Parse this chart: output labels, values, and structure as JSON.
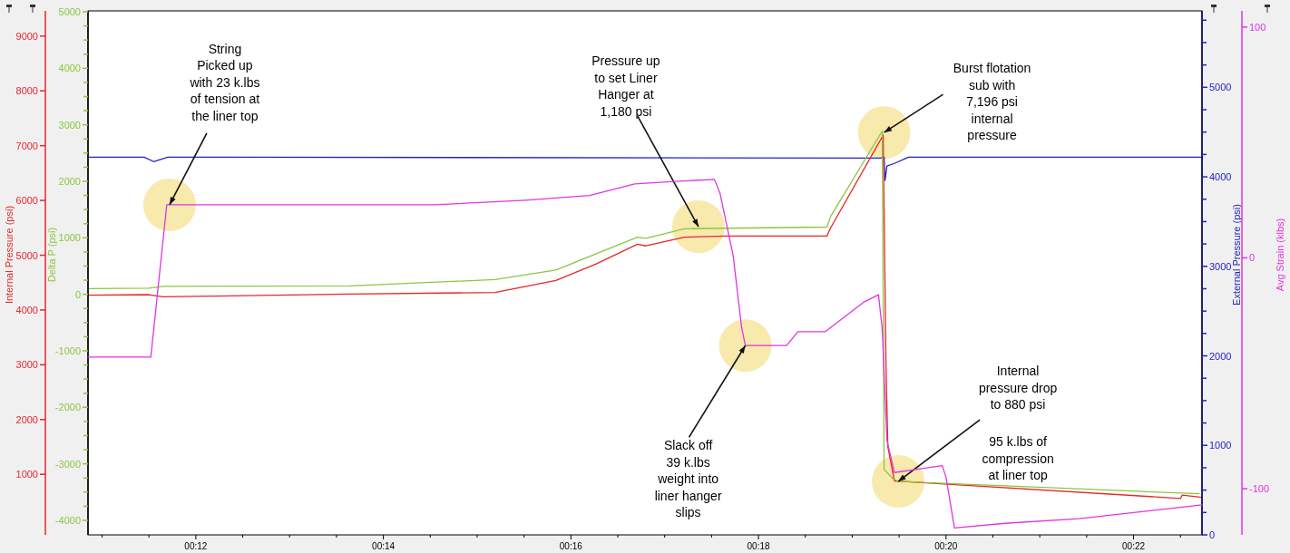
{
  "chart_data": [
    {
      "type": "line",
      "xlim": [
        10.85,
        22.73
      ],
      "xticks": [
        {
          "value": 11,
          "label": null
        },
        {
          "value": 11.5,
          "label": null
        },
        {
          "value": 12,
          "label": "00:12"
        },
        {
          "value": 12.5,
          "label": null
        },
        {
          "value": 13,
          "label": null
        },
        {
          "value": 13.5,
          "label": null
        },
        {
          "value": 14,
          "label": "00:14"
        },
        {
          "value": 14.5,
          "label": null
        },
        {
          "value": 15,
          "label": null
        },
        {
          "value": 15.5,
          "label": null
        },
        {
          "value": 16,
          "label": "00:16"
        },
        {
          "value": 16.5,
          "label": null
        },
        {
          "value": 17,
          "label": null
        },
        {
          "value": 17.5,
          "label": null
        },
        {
          "value": 18,
          "label": "00:18"
        },
        {
          "value": 18.5,
          "label": null
        },
        {
          "value": 19,
          "label": null
        },
        {
          "value": 19.5,
          "label": null
        },
        {
          "value": 20,
          "label": "00:20"
        },
        {
          "value": 20.5,
          "label": null
        },
        {
          "value": 21,
          "label": null
        },
        {
          "value": 21.5,
          "label": null
        },
        {
          "value": 22,
          "label": "00:22"
        },
        {
          "value": 22.5,
          "label": null
        }
      ],
      "ylabel": "Internal Pressure (psi)",
      "ylim": [
        -105,
        9460
      ],
      "yticks": [
        1000,
        2000,
        3000,
        4000,
        5000,
        6000,
        7000,
        8000,
        9000
      ],
      "y2label": "Delta P (psi)",
      "y2lim": [
        -4257,
        5016
      ],
      "y2ticks": [
        -4000,
        -3000,
        -2000,
        -1000,
        0,
        1000,
        2000,
        3000,
        4000,
        5000,
        {
          "value": -3750,
          "label": null
        },
        {
          "value": -3500,
          "label": null
        },
        {
          "value": -3250,
          "label": null
        },
        {
          "value": -2750,
          "label": null
        },
        {
          "value": -2500,
          "label": null
        },
        {
          "value": -2250,
          "label": null
        },
        {
          "value": -1750,
          "label": null
        },
        {
          "value": -1500,
          "label": null
        },
        {
          "value": -1250,
          "label": null
        },
        {
          "value": -750,
          "label": null
        },
        {
          "value": -500,
          "label": null
        },
        {
          "value": -250,
          "label": null
        },
        {
          "value": 250,
          "label": null
        },
        {
          "value": 500,
          "label": null
        },
        {
          "value": 750,
          "label": null
        },
        {
          "value": 1250,
          "label": null
        },
        {
          "value": 1500,
          "label": null
        },
        {
          "value": 1750,
          "label": null
        },
        {
          "value": 2250,
          "label": null
        },
        {
          "value": 2500,
          "label": null
        },
        {
          "value": 2750,
          "label": null
        },
        {
          "value": 3250,
          "label": null
        },
        {
          "value": 3500,
          "label": null
        },
        {
          "value": 3750,
          "label": null
        },
        {
          "value": 4250,
          "label": null
        },
        {
          "value": 4500,
          "label": null
        },
        {
          "value": 4750,
          "label": null
        }
      ],
      "y3label": "External Pressure (psi)",
      "y3lim": [
        0,
        5854
      ],
      "y3ticks": [
        0,
        1000,
        2000,
        3000,
        4000,
        5000,
        {
          "value": 250,
          "label": null
        },
        {
          "value": 500,
          "label": null
        },
        {
          "value": 750,
          "label": null
        },
        {
          "value": 1250,
          "label": null
        },
        {
          "value": 1500,
          "label": null
        },
        {
          "value": 1750,
          "label": null
        },
        {
          "value": 2250,
          "label": null
        },
        {
          "value": 2500,
          "label": null
        },
        {
          "value": 2750,
          "label": null
        },
        {
          "value": 3250,
          "label": null
        },
        {
          "value": 3500,
          "label": null
        },
        {
          "value": 3750,
          "label": null
        },
        {
          "value": 4250,
          "label": null
        },
        {
          "value": 4500,
          "label": null
        },
        {
          "value": 4750,
          "label": null
        },
        {
          "value": 5250,
          "label": null
        },
        {
          "value": 5500,
          "label": null
        },
        {
          "value": 5750,
          "label": null
        }
      ],
      "series": [
        {
          "color": "#2222c8",
          "axis": "y3",
          "x": [
            10.85,
            11.45,
            11.55,
            11.7,
            19.3,
            19.34,
            19.35,
            19.37,
            19.45,
            19.6,
            22.73
          ],
          "values": [
            4220,
            4220,
            4170,
            4220,
            4210,
            4220,
            3960,
            4120,
            4150,
            4220,
            4220
          ]
        },
        {
          "color": "#e8262a",
          "x": [
            10.85,
            11.5,
            11.65,
            13.64,
            15.19,
            15.84,
            16.27,
            16.71,
            16.8,
            17.21,
            17.65,
            18.73,
            18.77,
            19.33,
            19.36,
            19.38,
            19.45,
            22.5,
            22.52,
            22.73
          ],
          "values": [
            4270,
            4280,
            4240,
            4290,
            4320,
            4540,
            4840,
            5200,
            5170,
            5330,
            5350,
            5350,
            5500,
            7190,
            3000,
            1500,
            880,
            560,
            620,
            580
          ]
        },
        {
          "color": "#8cc63e",
          "axis": "y2",
          "x": [
            10.85,
            11.5,
            11.65,
            13.64,
            15.19,
            15.84,
            16.27,
            16.71,
            16.8,
            16.92,
            17.21,
            17.65,
            18.73,
            18.77,
            19.32,
            19.34,
            19.44,
            19.49,
            22.7
          ],
          "values": [
            100,
            110,
            140,
            150,
            260,
            430,
            720,
            1010,
            990,
            1040,
            1160,
            1170,
            1190,
            1380,
            2890,
            -3100,
            -3270,
            -3310,
            -3530
          ]
        }
      ],
      "annotations": [
        {
          "text": "Pressure up\nto set Liner\nHanger at\n1,180 psi",
          "x": 17.36,
          "y": 5520
        },
        {
          "text": "Burst flotation\nsub with\n7,196 psi\ninternal\npressure",
          "x": 19.34,
          "y": 7240
        },
        {
          "text": "Internal\npressure drop\nto 880 psi",
          "x": 19.49,
          "y": 870
        },
        "95 k.lbs of\ncompression\nat liner top"
      ]
    },
    {
      "type": "line",
      "tick_labels": "y",
      "xlim": [
        10.85,
        22.73
      ],
      "ylabel": "Avg Strain (klbs)",
      "ylim": [
        -120,
        107
      ],
      "annotations": [
        {
          "text": "String\nPicked up\nwith 23 k.lbs\nof tension at\nthe liner top",
          "x": 11.72,
          "y": 23
        },
        {
          "text": "Slack off\n39 k.lbs\nweight into\nliner hanger\nslips",
          "x": 17.86,
          "y": -38
        }
      ],
      "yticks": [
        -100,
        0,
        100
      ],
      "series": [
        {
          "color": "#e035e0",
          "x": [
            10.85,
            11.52,
            11.69,
            14.55,
            15.52,
            16.2,
            16.68,
            17.07,
            17.53,
            17.59,
            17.73,
            17.82,
            17.86,
            18.3,
            18.42,
            18.71,
            19.13,
            19.28,
            19.32,
            19.37,
            19.45,
            19.96,
            20.0,
            20.09,
            20.63,
            21.42,
            22.52,
            22.73
          ],
          "values": [
            -43,
            -43,
            23,
            23,
            25,
            27,
            32,
            33,
            34,
            28,
            1,
            -30,
            -38,
            -38,
            -32,
            -32,
            -19,
            -16,
            -31,
            -79,
            -93,
            -90,
            -95,
            -117,
            -115,
            -113,
            -108,
            -107
          ]
        }
      ]
    }
  ]
}
